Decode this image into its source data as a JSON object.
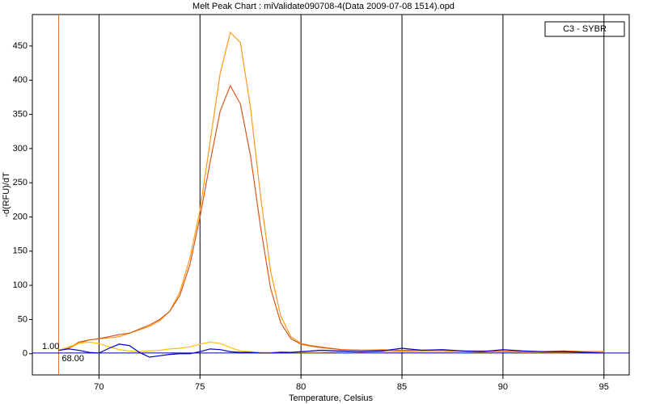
{
  "chart_data": {
    "type": "line",
    "title": "Melt Peak Chart : miValidate090708-4(Data 2009-07-08 1514).opd",
    "xlabel": "Temperature, Celsius",
    "ylabel": "-d(RFU)/dT",
    "legend_title": "C3 - SYBR",
    "x": [
      68,
      68.5,
      69,
      69.5,
      70,
      70.5,
      71,
      71.5,
      72,
      72.5,
      73,
      73.5,
      74,
      74.5,
      75,
      75.5,
      76,
      76.5,
      77,
      77.5,
      78,
      78.5,
      79,
      79.5,
      80,
      80.5,
      81,
      82,
      83,
      84,
      85,
      86,
      87,
      88,
      89,
      90,
      91,
      92,
      93,
      94,
      95
    ],
    "series": [
      {
        "color": "#ff9a1a",
        "values": [
          5,
          8,
          15,
          20,
          22,
          23,
          25,
          30,
          35,
          40,
          48,
          62,
          90,
          140,
          210,
          310,
          410,
          470,
          455,
          360,
          230,
          120,
          55,
          25,
          15,
          12,
          10,
          6,
          5,
          6,
          4,
          5,
          5,
          3,
          4,
          3,
          4,
          3,
          4,
          3,
          3
        ]
      },
      {
        "color": "#d8581a",
        "values": [
          5,
          8,
          17,
          20,
          22,
          25,
          28,
          30,
          36,
          42,
          50,
          62,
          85,
          130,
          200,
          280,
          355,
          392,
          365,
          290,
          185,
          95,
          45,
          22,
          14,
          11,
          9,
          6,
          5,
          5,
          5,
          5,
          5,
          4,
          4,
          4,
          3,
          3,
          4,
          3,
          3
        ]
      },
      {
        "color": "#ffc000",
        "values": [
          5,
          10,
          15,
          17,
          15,
          10,
          6,
          4,
          3,
          4,
          5,
          7,
          8,
          10,
          14,
          17,
          15,
          9,
          4,
          3,
          2,
          2,
          3,
          2,
          2,
          2,
          2,
          3,
          3,
          3,
          3,
          3,
          3,
          3,
          2,
          3,
          2,
          2,
          2,
          2,
          2
        ]
      },
      {
        "color": "#0000c8",
        "values": [
          5,
          7,
          5,
          2,
          1,
          8,
          14,
          12,
          2,
          -5,
          -3,
          -1,
          0,
          0,
          3,
          7,
          6,
          3,
          2,
          2,
          1,
          1,
          2,
          2,
          3,
          4,
          5,
          4,
          3,
          4,
          8,
          5,
          6,
          4,
          3,
          6,
          4,
          3,
          3,
          2,
          1
        ]
      }
    ],
    "xlim": [
      66.7,
      96.25
    ],
    "ylim": [
      -31,
      496
    ],
    "xticks": [
      70,
      75,
      80,
      85,
      90,
      95
    ],
    "yticks": [
      0,
      50,
      100,
      150,
      200,
      250,
      300,
      350,
      400,
      450
    ],
    "grid": "x",
    "threshold": {
      "value": 1,
      "label": "1.00",
      "color": "#0000a0"
    },
    "marker": {
      "value": 68,
      "label": "68.00",
      "color": "#e07020"
    }
  }
}
